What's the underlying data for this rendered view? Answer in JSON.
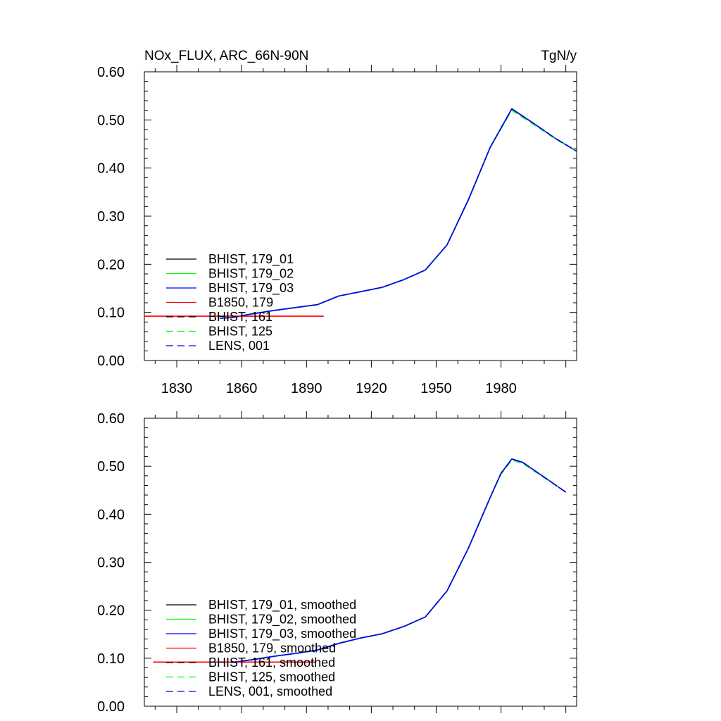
{
  "chart_data": [
    {
      "type": "line",
      "title": "NOx_FLUX, ARC_66N-90N",
      "units": "TgN/y",
      "xlabel": "",
      "ylabel": "",
      "xlim": [
        1815,
        2015
      ],
      "ylim": [
        0,
        0.6
      ],
      "x_ticks": [
        "1830",
        "1860",
        "1890",
        "1920",
        "1950",
        "1980"
      ],
      "y_ticks": [
        "0.00",
        "0.10",
        "0.20",
        "0.30",
        "0.40",
        "0.50",
        "0.60"
      ],
      "grid": false,
      "legend_position": "bottom-left",
      "x": [
        1850,
        1855,
        1865,
        1875,
        1885,
        1895,
        1905,
        1915,
        1925,
        1935,
        1945,
        1955,
        1965,
        1975,
        1985,
        1995,
        2005,
        2015
      ],
      "series": [
        {
          "name": "BHIST, 179_01",
          "color": "#000000",
          "style": "solid",
          "values": [
            0.088,
            0.089,
            0.097,
            0.104,
            0.11,
            0.116,
            0.134,
            0.143,
            0.152,
            0.168,
            0.188,
            0.24,
            0.335,
            0.443,
            0.523,
            0.493,
            0.462,
            0.435
          ]
        },
        {
          "name": "BHIST, 179_02",
          "color": "#00ff00",
          "style": "solid",
          "values": [
            0.088,
            0.089,
            0.097,
            0.104,
            0.11,
            0.116,
            0.134,
            0.143,
            0.152,
            0.168,
            0.188,
            0.24,
            0.335,
            0.443,
            0.523,
            0.493,
            0.462,
            0.435
          ]
        },
        {
          "name": "BHIST, 179_03",
          "color": "#0000ff",
          "style": "solid",
          "values": [
            0.088,
            0.089,
            0.097,
            0.104,
            0.11,
            0.116,
            0.134,
            0.143,
            0.152,
            0.168,
            0.188,
            0.24,
            0.335,
            0.443,
            0.523,
            0.493,
            0.462,
            0.435
          ]
        },
        {
          "name": "B1850, 179",
          "color": "#ff0000",
          "style": "solid",
          "x": [
            1815,
            1898
          ],
          "values": [
            0.092,
            0.092
          ]
        },
        {
          "name": "BHIST, 161",
          "color": "#000000",
          "style": "dashed",
          "values": [
            0.088,
            0.089,
            0.097,
            0.104,
            0.11,
            0.116,
            0.134,
            0.143,
            0.152,
            0.168,
            0.188,
            0.24,
            0.335,
            0.443,
            0.523,
            0.493,
            0.462,
            0.435
          ]
        },
        {
          "name": "BHIST, 125",
          "color": "#00ff00",
          "style": "dashed",
          "values": [
            0.088,
            0.089,
            0.097,
            0.104,
            0.11,
            0.116,
            0.134,
            0.143,
            0.152,
            0.168,
            0.188,
            0.24,
            0.335,
            0.443,
            0.52,
            0.491,
            0.461,
            0.435
          ]
        },
        {
          "name": "LENS, 001",
          "color": "#0000ff",
          "style": "dashed",
          "values": [
            0.088,
            0.089,
            0.097,
            0.104,
            0.11,
            0.116,
            0.134,
            0.143,
            0.152,
            0.168,
            0.188,
            0.24,
            0.335,
            0.443,
            0.523,
            0.493,
            0.462,
            0.435
          ]
        }
      ]
    },
    {
      "type": "line",
      "title": "",
      "units": "",
      "xlabel": "",
      "ylabel": "",
      "xlim": [
        1815,
        2015
      ],
      "ylim": [
        0,
        0.6
      ],
      "x_ticks": [],
      "y_ticks": [
        "0.00",
        "0.10",
        "0.20",
        "0.30",
        "0.40",
        "0.50",
        "0.60"
      ],
      "grid": false,
      "legend_position": "bottom-left",
      "x": [
        1855,
        1865,
        1875,
        1885,
        1895,
        1905,
        1915,
        1925,
        1935,
        1945,
        1955,
        1965,
        1975,
        1980,
        1985,
        1990,
        2000,
        2010
      ],
      "series": [
        {
          "name": "BHIST, 179_01, smoothed",
          "color": "#000000",
          "style": "solid",
          "values": [
            0.091,
            0.097,
            0.104,
            0.11,
            0.117,
            0.131,
            0.142,
            0.151,
            0.166,
            0.186,
            0.24,
            0.33,
            0.435,
            0.485,
            0.515,
            0.508,
            0.477,
            0.446
          ]
        },
        {
          "name": "BHIST, 179_02, smoothed",
          "color": "#00ff00",
          "style": "solid",
          "values": [
            0.091,
            0.097,
            0.104,
            0.11,
            0.117,
            0.131,
            0.142,
            0.151,
            0.166,
            0.186,
            0.24,
            0.33,
            0.435,
            0.485,
            0.515,
            0.508,
            0.477,
            0.446
          ]
        },
        {
          "name": "BHIST, 179_03, smoothed",
          "color": "#0000ff",
          "style": "solid",
          "values": [
            0.091,
            0.097,
            0.104,
            0.11,
            0.117,
            0.131,
            0.142,
            0.151,
            0.166,
            0.186,
            0.24,
            0.33,
            0.435,
            0.485,
            0.515,
            0.508,
            0.477,
            0.446
          ]
        },
        {
          "name": "B1850, 179, smoothed",
          "color": "#ff0000",
          "style": "solid",
          "x": [
            1819,
            1894
          ],
          "values": [
            0.092,
            0.092
          ]
        },
        {
          "name": "BHIST, 161, smoothed",
          "color": "#000000",
          "style": "dashed",
          "values": [
            0.091,
            0.097,
            0.104,
            0.11,
            0.117,
            0.131,
            0.142,
            0.151,
            0.166,
            0.186,
            0.24,
            0.33,
            0.435,
            0.485,
            0.515,
            0.508,
            0.477,
            0.446
          ]
        },
        {
          "name": "BHIST, 125, smoothed",
          "color": "#00ff00",
          "style": "dashed",
          "values": [
            0.091,
            0.097,
            0.104,
            0.11,
            0.117,
            0.131,
            0.142,
            0.151,
            0.166,
            0.186,
            0.24,
            0.33,
            0.435,
            0.483,
            0.513,
            0.506,
            0.476,
            0.446
          ]
        },
        {
          "name": "LENS, 001, smoothed",
          "color": "#0000ff",
          "style": "dashed",
          "values": [
            0.091,
            0.097,
            0.104,
            0.11,
            0.117,
            0.131,
            0.142,
            0.151,
            0.166,
            0.186,
            0.24,
            0.33,
            0.435,
            0.485,
            0.515,
            0.508,
            0.477,
            0.446
          ]
        }
      ]
    }
  ]
}
